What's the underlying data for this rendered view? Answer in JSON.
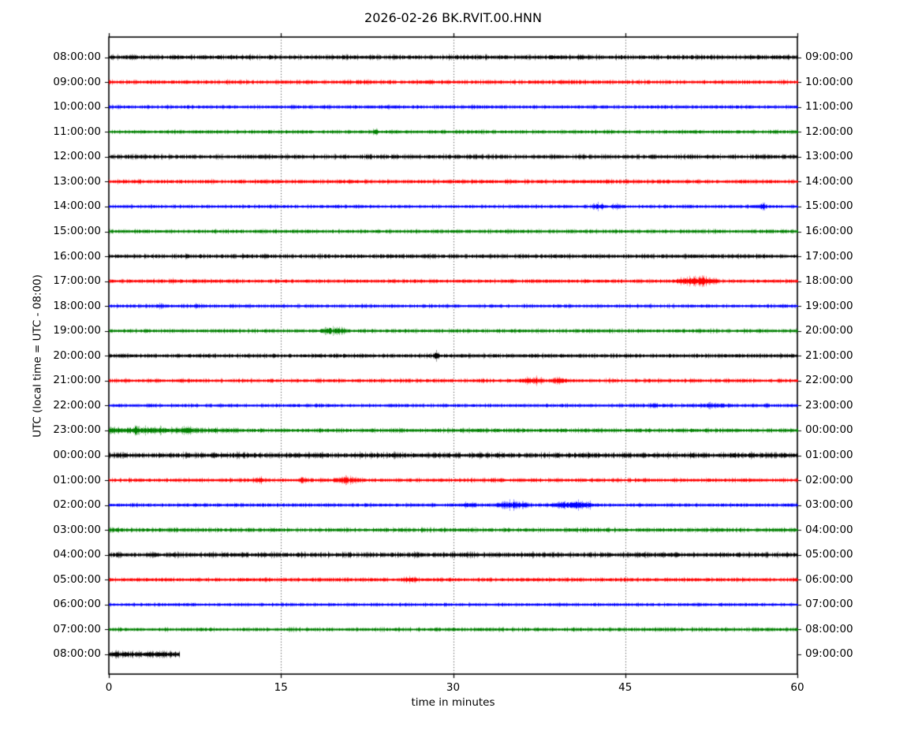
{
  "chart_data": {
    "type": "line",
    "subtype": "helicorder-dayplot",
    "title": "2026-02-26 BK.RVIT.00.HNN",
    "date": "2026-02-26",
    "station": "BK.RVIT.00.HNN",
    "xlabel": "time in minutes",
    "ylabel": "UTC (local time = UTC - 08:00)",
    "xlim": [
      0,
      60
    ],
    "x_ticks": [
      0,
      15,
      30,
      45,
      60
    ],
    "grid_minutes": [
      15,
      30,
      45
    ],
    "grid_style": "dotted",
    "minutes_per_row": 60,
    "trace_colors_cycle": [
      "#000000",
      "#ff0000",
      "#0000ff",
      "#008000"
    ],
    "rows": [
      {
        "left_label": "08:00:00",
        "right_label": "09:00:00",
        "color": "#000000",
        "start_min": 0,
        "end_min": 60,
        "base_amp": 1.9,
        "events": []
      },
      {
        "left_label": "09:00:00",
        "right_label": "10:00:00",
        "color": "#ff0000",
        "start_min": 0,
        "end_min": 60,
        "base_amp": 1.7,
        "events": []
      },
      {
        "left_label": "10:00:00",
        "right_label": "11:00:00",
        "color": "#0000ff",
        "start_min": 0,
        "end_min": 60,
        "base_amp": 1.5,
        "events": []
      },
      {
        "left_label": "11:00:00",
        "right_label": "12:00:00",
        "color": "#008000",
        "start_min": 0,
        "end_min": 60,
        "base_amp": 1.5,
        "events": [
          {
            "start": 22.9,
            "end": 23.5,
            "amp": 2.4
          }
        ]
      },
      {
        "left_label": "12:00:00",
        "right_label": "13:00:00",
        "color": "#000000",
        "start_min": 0,
        "end_min": 60,
        "base_amp": 1.9,
        "events": []
      },
      {
        "left_label": "13:00:00",
        "right_label": "14:00:00",
        "color": "#ff0000",
        "start_min": 0,
        "end_min": 60,
        "base_amp": 1.7,
        "events": []
      },
      {
        "left_label": "14:00:00",
        "right_label": "15:00:00",
        "color": "#0000ff",
        "start_min": 0,
        "end_min": 60,
        "base_amp": 1.4,
        "events": [
          {
            "start": 42.0,
            "end": 43.3,
            "amp": 2.0
          },
          {
            "start": 43.6,
            "end": 44.9,
            "amp": 1.5
          },
          {
            "start": 56.7,
            "end": 57.3,
            "amp": 2.6
          }
        ]
      },
      {
        "left_label": "15:00:00",
        "right_label": "16:00:00",
        "color": "#008000",
        "start_min": 0,
        "end_min": 60,
        "base_amp": 1.6,
        "events": []
      },
      {
        "left_label": "16:00:00",
        "right_label": "17:00:00",
        "color": "#000000",
        "start_min": 0,
        "end_min": 60,
        "base_amp": 1.8,
        "events": []
      },
      {
        "left_label": "17:00:00",
        "right_label": "18:00:00",
        "color": "#ff0000",
        "start_min": 0,
        "end_min": 60,
        "base_amp": 1.6,
        "events": [
          {
            "start": 5.3,
            "end": 5.8,
            "amp": 1.4
          },
          {
            "start": 49.2,
            "end": 53.3,
            "amp": 3.4
          }
        ]
      },
      {
        "left_label": "18:00:00",
        "right_label": "19:00:00",
        "color": "#0000ff",
        "start_min": 0,
        "end_min": 60,
        "base_amp": 1.5,
        "events": [
          {
            "start": 4.0,
            "end": 5.2,
            "amp": 1.0
          },
          {
            "start": 7.0,
            "end": 8.5,
            "amp": 0.8
          }
        ]
      },
      {
        "left_label": "19:00:00",
        "right_label": "20:00:00",
        "color": "#008000",
        "start_min": 0,
        "end_min": 60,
        "base_amp": 1.6,
        "events": [
          {
            "start": 18.3,
            "end": 20.8,
            "amp": 2.5
          }
        ]
      },
      {
        "left_label": "20:00:00",
        "right_label": "21:00:00",
        "color": "#000000",
        "start_min": 0,
        "end_min": 60,
        "base_amp": 1.7,
        "events": [
          {
            "start": 28.2,
            "end": 28.8,
            "amp": 3.0
          }
        ]
      },
      {
        "left_label": "21:00:00",
        "right_label": "22:00:00",
        "color": "#ff0000",
        "start_min": 0,
        "end_min": 60,
        "base_amp": 1.6,
        "events": [
          {
            "start": 35.6,
            "end": 38.0,
            "amp": 2.2
          },
          {
            "start": 38.2,
            "end": 40.0,
            "amp": 1.8
          }
        ]
      },
      {
        "left_label": "22:00:00",
        "right_label": "23:00:00",
        "color": "#0000ff",
        "start_min": 0,
        "end_min": 60,
        "base_amp": 1.5,
        "events": [
          {
            "start": 46.8,
            "end": 48.0,
            "amp": 1.1
          },
          {
            "start": 50.5,
            "end": 54.5,
            "amp": 1.1
          },
          {
            "start": 57.0,
            "end": 57.6,
            "amp": 1.4
          }
        ]
      },
      {
        "left_label": "23:00:00",
        "right_label": "00:00:00",
        "color": "#008000",
        "start_min": 0,
        "end_min": 60,
        "base_amp": 1.7,
        "events": [
          {
            "start": 0.0,
            "end": 11.5,
            "amp": 2.1,
            "shape": "decay"
          },
          {
            "start": 2.0,
            "end": 2.6,
            "amp": 1.5
          },
          {
            "start": 4.2,
            "end": 4.8,
            "amp": 1.4
          },
          {
            "start": 6.5,
            "end": 7.3,
            "amp": 1.6
          }
        ]
      },
      {
        "left_label": "00:00:00",
        "right_label": "01:00:00",
        "color": "#000000",
        "start_min": 0,
        "end_min": 60,
        "base_amp": 2.3,
        "events": []
      },
      {
        "left_label": "01:00:00",
        "right_label": "02:00:00",
        "color": "#ff0000",
        "start_min": 0,
        "end_min": 60,
        "base_amp": 1.6,
        "events": [
          {
            "start": 12.4,
            "end": 13.6,
            "amp": 1.7
          },
          {
            "start": 16.5,
            "end": 17.2,
            "amp": 1.7
          },
          {
            "start": 19.3,
            "end": 22.0,
            "amp": 2.1
          }
        ]
      },
      {
        "left_label": "02:00:00",
        "right_label": "03:00:00",
        "color": "#0000ff",
        "start_min": 0,
        "end_min": 60,
        "base_amp": 1.5,
        "events": [
          {
            "start": 30.6,
            "end": 32.2,
            "amp": 1.5
          },
          {
            "start": 33.3,
            "end": 36.8,
            "amp": 2.8
          },
          {
            "start": 38.3,
            "end": 42.6,
            "amp": 2.8
          }
        ]
      },
      {
        "left_label": "03:00:00",
        "right_label": "04:00:00",
        "color": "#008000",
        "start_min": 0,
        "end_min": 60,
        "base_amp": 1.7,
        "events": []
      },
      {
        "left_label": "04:00:00",
        "right_label": "05:00:00",
        "color": "#000000",
        "start_min": 0,
        "end_min": 60,
        "base_amp": 2.1,
        "events": []
      },
      {
        "left_label": "05:00:00",
        "right_label": "06:00:00",
        "color": "#ff0000",
        "start_min": 0,
        "end_min": 60,
        "base_amp": 1.6,
        "events": [
          {
            "start": 25.5,
            "end": 27.0,
            "amp": 1.5
          }
        ]
      },
      {
        "left_label": "06:00:00",
        "right_label": "07:00:00",
        "color": "#0000ff",
        "start_min": 0,
        "end_min": 60,
        "base_amp": 1.4,
        "events": []
      },
      {
        "left_label": "07:00:00",
        "right_label": "08:00:00",
        "color": "#008000",
        "start_min": 0,
        "end_min": 60,
        "base_amp": 1.6,
        "events": []
      },
      {
        "left_label": "08:00:00",
        "right_label": "09:00:00",
        "color": "#000000",
        "start_min": 0,
        "end_min": 6.1,
        "base_amp": 2.6,
        "events": []
      }
    ]
  }
}
